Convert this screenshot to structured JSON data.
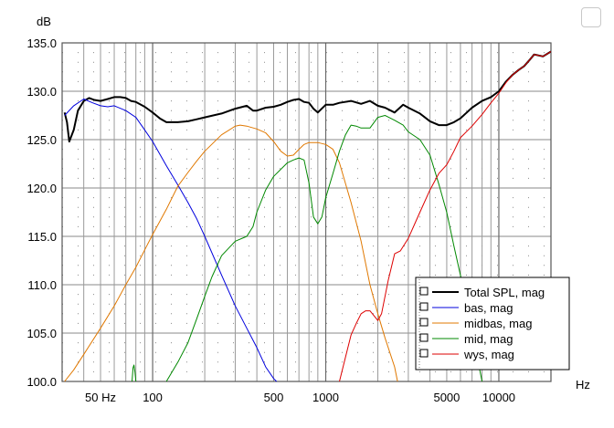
{
  "window": {
    "corner_button": ""
  },
  "chart_data": {
    "type": "line",
    "title": "",
    "xlabel": "Hz",
    "ylabel": "dB",
    "xscale": "log",
    "xlim": [
      30,
      20000
    ],
    "ylim": [
      100,
      135
    ],
    "grid": true,
    "ytick_labels": [
      "100.0",
      "105.0",
      "110.0",
      "115.0",
      "120.0",
      "125.0",
      "130.0",
      "135.0"
    ],
    "xtick_labels": [
      {
        "x": 50,
        "label": "50 Hz"
      },
      {
        "x": 100,
        "label": "100"
      },
      {
        "x": 500,
        "label": "500"
      },
      {
        "x": 1000,
        "label": "1000"
      },
      {
        "x": 5000,
        "label": "5000"
      },
      {
        "x": 10000,
        "label": "10000"
      }
    ],
    "legend_position": "bottom-right",
    "series": [
      {
        "name": "Total SPL, mag",
        "color": "#000000",
        "width": 2,
        "x": [
          31,
          32,
          33,
          35,
          37,
          40,
          43,
          46,
          50,
          55,
          60,
          65,
          70,
          75,
          80,
          90,
          100,
          110,
          120,
          140,
          160,
          180,
          200,
          250,
          300,
          350,
          380,
          400,
          450,
          500,
          550,
          600,
          650,
          700,
          750,
          800,
          850,
          900,
          1000,
          1100,
          1200,
          1400,
          1600,
          1800,
          2000,
          2200,
          2500,
          2800,
          3000,
          3500,
          4000,
          4500,
          5000,
          5500,
          6000,
          7000,
          8000,
          9000,
          10000,
          11000,
          12000,
          13000,
          14000,
          15000,
          16000,
          18000,
          20000
        ],
        "y": [
          127.8,
          126.8,
          124.8,
          126.0,
          128.0,
          129.0,
          129.3,
          129.1,
          129.0,
          129.2,
          129.4,
          129.4,
          129.3,
          129.0,
          128.9,
          128.4,
          127.8,
          127.2,
          126.8,
          126.8,
          126.9,
          127.1,
          127.3,
          127.7,
          128.2,
          128.5,
          128.0,
          128.0,
          128.3,
          128.4,
          128.6,
          128.9,
          129.1,
          129.2,
          128.9,
          128.8,
          128.2,
          127.8,
          128.6,
          128.6,
          128.8,
          129.0,
          128.7,
          129.0,
          128.5,
          128.3,
          127.8,
          128.6,
          128.3,
          127.7,
          126.9,
          126.5,
          126.5,
          126.8,
          127.2,
          128.3,
          129.0,
          129.4,
          130.0,
          131.0,
          131.7,
          132.2,
          132.6,
          133.2,
          133.8,
          133.6,
          134.1
        ]
      },
      {
        "name": "bas, mag",
        "color": "#0000dd",
        "width": 1,
        "x": [
          31,
          35,
          40,
          45,
          50,
          55,
          60,
          70,
          80,
          90,
          100,
          120,
          140,
          160,
          180,
          200,
          250,
          300,
          350,
          400,
          450,
          500,
          520
        ],
        "y": [
          127.5,
          128.5,
          129.2,
          128.8,
          128.5,
          128.4,
          128.5,
          128.0,
          127.3,
          126.0,
          124.8,
          122.3,
          120.3,
          118.5,
          116.8,
          115.0,
          111.0,
          107.8,
          105.5,
          103.5,
          101.5,
          100.3,
          100.0
        ]
      },
      {
        "name": "midbas, mag",
        "color": "#e07800",
        "width": 1,
        "x": [
          31,
          35,
          40,
          50,
          60,
          70,
          80,
          90,
          100,
          120,
          140,
          160,
          180,
          200,
          250,
          300,
          320,
          350,
          400,
          450,
          500,
          550,
          600,
          650,
          700,
          750,
          800,
          900,
          1000,
          1100,
          1200,
          1400,
          1600,
          1800,
          2000,
          2200,
          2500,
          2600
        ],
        "y": [
          100.0,
          101.2,
          102.8,
          105.5,
          107.8,
          110.0,
          111.8,
          113.6,
          115.2,
          117.8,
          120.2,
          121.6,
          122.8,
          123.8,
          125.5,
          126.4,
          126.5,
          126.4,
          126.1,
          125.7,
          124.8,
          123.8,
          123.3,
          123.4,
          124.0,
          124.5,
          124.7,
          124.7,
          124.5,
          124.0,
          122.6,
          118.5,
          114.5,
          110.0,
          107.0,
          104.5,
          101.5,
          100.0
        ]
      },
      {
        "name": "mid, mag",
        "color": "#008800",
        "width": 1,
        "x": [
          120,
          140,
          160,
          180,
          200,
          220,
          250,
          300,
          350,
          380,
          400,
          450,
          500,
          600,
          650,
          700,
          750,
          800,
          850,
          900,
          950,
          1000,
          1100,
          1200,
          1300,
          1400,
          1500,
          1600,
          1800,
          2000,
          2200,
          2500,
          2800,
          3000,
          3500,
          4000,
          4500,
          5000,
          5500,
          6000,
          6500,
          7000,
          7500,
          8000
        ],
        "y": [
          100.0,
          102.0,
          104.0,
          106.5,
          108.8,
          110.8,
          113.0,
          114.5,
          115.0,
          116.0,
          117.5,
          119.8,
          121.2,
          122.6,
          122.9,
          123.1,
          122.9,
          120.5,
          117.0,
          116.3,
          117.0,
          119.0,
          121.5,
          123.8,
          125.5,
          126.5,
          126.4,
          126.2,
          126.2,
          127.3,
          127.5,
          127.0,
          126.5,
          125.8,
          125.0,
          123.4,
          120.4,
          117.5,
          114.0,
          111.0,
          108.3,
          105.2,
          102.5,
          100.0
        ]
      },
      {
        "name": "mid, mag",
        "color": "#008800",
        "width": 1,
        "legend": false,
        "x": [
          76,
          77,
          78,
          79,
          80
        ],
        "y": [
          100.0,
          101.4,
          101.7,
          101.0,
          100.0
        ]
      },
      {
        "name": "wys, mag",
        "color": "#dd0000",
        "width": 1,
        "x": [
          1200,
          1300,
          1400,
          1500,
          1600,
          1700,
          1800,
          1900,
          2000,
          2100,
          2200,
          2300,
          2500,
          2700,
          3000,
          3500,
          4000,
          4500,
          5000,
          5500,
          6000,
          7000,
          8000,
          9000,
          10000,
          11000,
          12000,
          13000,
          14000,
          15000,
          16000,
          18000,
          20000
        ],
        "y": [
          100.0,
          102.5,
          104.8,
          106.0,
          107.0,
          107.3,
          107.3,
          106.8,
          106.3,
          107.0,
          108.8,
          110.5,
          113.2,
          113.5,
          114.8,
          117.5,
          119.8,
          121.5,
          122.4,
          123.8,
          125.2,
          126.4,
          127.6,
          128.8,
          129.8,
          130.9,
          131.7,
          132.2,
          132.6,
          133.2,
          133.8,
          133.6,
          134.1
        ]
      }
    ]
  }
}
